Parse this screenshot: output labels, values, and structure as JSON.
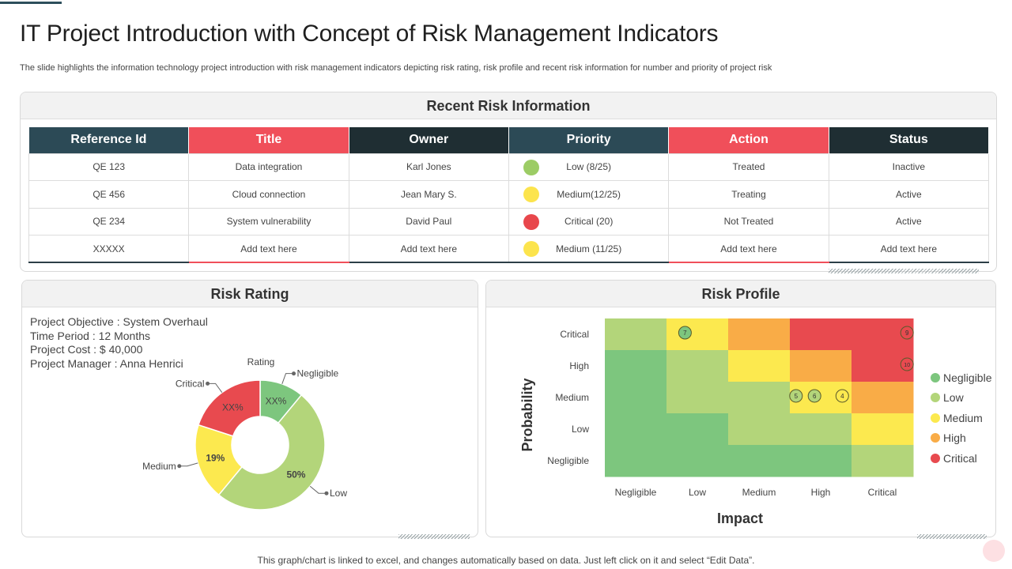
{
  "page": {
    "title": "IT Project Introduction with Concept of Risk Management Indicators",
    "subtitle": "The slide highlights the information technology project introduction with risk management indicators depicting risk rating, risk profile and recent risk information for number and priority of project risk",
    "footer": "This graph/chart is linked to excel,  and changes automatically based on data. Just left click on it and select “Edit Data”."
  },
  "recent_risk": {
    "title": "Recent Risk Information",
    "headers": [
      "Reference  Id",
      "Title",
      "Owner",
      "Priority",
      "Action",
      "Status"
    ],
    "rows": [
      {
        "ref": "QE 123",
        "title": "Data integration",
        "owner": "Karl Jones",
        "priority": "Low (8/25)",
        "priority_color": "#9ccc65",
        "action": "Treated",
        "status": "Inactive"
      },
      {
        "ref": "QE 456",
        "title": "Cloud connection",
        "owner": "Jean Mary   S.",
        "priority": "Medium(12/25)",
        "priority_color": "#fce44d",
        "action": "Treating",
        "status": "Active"
      },
      {
        "ref": "QE 234",
        "title": "System vulnerability",
        "owner": "David Paul",
        "priority": "Critical (20)",
        "priority_color": "#e8474c",
        "action": "Not Treated",
        "status": "Active"
      },
      {
        "ref": "XXXXX",
        "title": "Add text here",
        "owner": "Add text here",
        "priority": "Medium (11/25)",
        "priority_color": "#fce44d",
        "action": "Add text here",
        "status": "Add text here"
      }
    ]
  },
  "risk_rating": {
    "title": "Risk Rating",
    "info": [
      "Project Objective : System Overhaul",
      "Time Period : 12 Months",
      "Project Cost : $ 40,000",
      "Project Manager : Anna  Henrici"
    ]
  },
  "risk_profile": {
    "title": "Risk Profile"
  },
  "chart_data": [
    {
      "type": "pie",
      "title": "Rating",
      "categories": [
        "Negligible",
        "Low",
        "Medium",
        "Critical"
      ],
      "values": [
        11,
        50,
        19,
        20
      ],
      "data_labels": [
        "XX%",
        "50%",
        "19%",
        "XX%"
      ],
      "colors": [
        "#7dc67e",
        "#b3d57a",
        "#fce94f",
        "#e84a4f"
      ],
      "legend": "callouts"
    },
    {
      "type": "heatmap",
      "xlabel": "Impact",
      "ylabel": "Probability",
      "x_categories": [
        "Negligible",
        "Low",
        "Medium",
        "High",
        "Critical"
      ],
      "y_categories": [
        "Critical",
        "High",
        "Medium",
        "Low",
        "Negligible"
      ],
      "levels": [
        "Negligible",
        "Low",
        "Medium",
        "High",
        "Critical"
      ],
      "level_colors": [
        "#7dc67e",
        "#b3d57a",
        "#fce94f",
        "#f9ac47",
        "#e84a4f"
      ],
      "cells": [
        [
          "Low",
          "Medium",
          "High",
          "Critical",
          "Critical"
        ],
        [
          "Negligible",
          "Low",
          "Medium",
          "High",
          "Critical"
        ],
        [
          "Negligible",
          "Low",
          "Low",
          "Medium",
          "High"
        ],
        [
          "Negligible",
          "Negligible",
          "Low",
          "Low",
          "Medium"
        ],
        [
          "Negligible",
          "Negligible",
          "Negligible",
          "Negligible",
          "Low"
        ]
      ],
      "markers": [
        {
          "label": "7",
          "x": "Low",
          "y": "Critical",
          "color": "#7dc67e"
        },
        {
          "label": "9",
          "x": "Critical",
          "y": "Critical",
          "color": "#e84a4f"
        },
        {
          "label": "10",
          "x": "Critical",
          "y": "High",
          "color": "#e84a4f"
        },
        {
          "label": "5",
          "x": "High",
          "y": "Medium",
          "color": "#b3d57a",
          "slot": -0.4
        },
        {
          "label": "6",
          "x": "High",
          "y": "Medium",
          "color": "#b3d57a",
          "slot": -0.1
        },
        {
          "label": "4",
          "x": "High",
          "y": "Medium",
          "color": "#fce94f",
          "slot": 0.35
        }
      ],
      "legend": "right"
    }
  ]
}
